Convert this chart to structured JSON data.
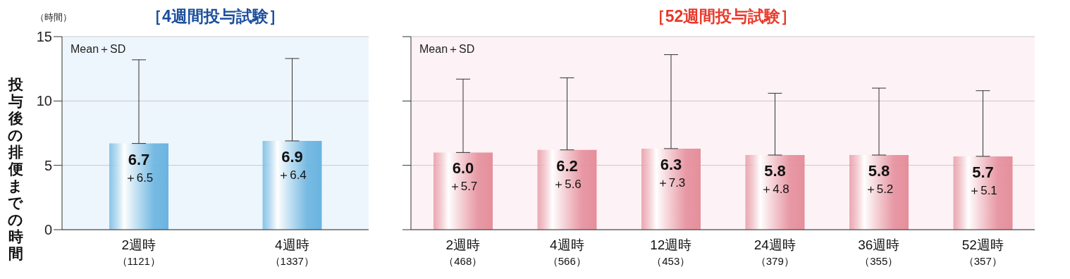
{
  "chart_data": [
    {
      "type": "bar",
      "title": "［4週間投与試験］",
      "ylabel": "投与後の排便までの時間",
      "annotations": [
        "（時間）",
        "Mean＋SD"
      ],
      "categories": [
        "2週時（1121）",
        "4週時（1337）"
      ],
      "series": [
        {
          "color": "#6ab4e0",
          "values": [
            6.7,
            6.9
          ],
          "errors": [
            [
              6.7,
              13.2
            ],
            [
              6.9,
              13.3
            ]
          ],
          "value_labels": [
            "6.7\n＋6.5",
            "6.9\n＋6.4"
          ]
        }
      ],
      "ylim": [
        0,
        15
      ],
      "yticks": [
        0,
        5,
        10,
        15
      ],
      "grid": "y",
      "legend": false
    },
    {
      "type": "bar",
      "title": "［52週間投与試験］",
      "annotations": [
        "Mean＋SD"
      ],
      "categories": [
        "2週時（468）",
        "4週時（566）",
        "12週時（453）",
        "24週時（379）",
        "36週時（355）",
        "52週時（357）"
      ],
      "series": [
        {
          "color": "#e58f9c",
          "values": [
            6.0,
            6.2,
            6.3,
            5.8,
            5.8,
            5.7
          ],
          "errors": [
            [
              6.0,
              11.7
            ],
            [
              6.2,
              11.8
            ],
            [
              6.3,
              13.6
            ],
            [
              5.8,
              10.6
            ],
            [
              5.8,
              11.0
            ],
            [
              5.7,
              10.8
            ]
          ],
          "value_labels": [
            "6.0\n＋5.7",
            "6.2\n＋5.6",
            "6.3\n＋7.3",
            "5.8\n＋4.8",
            "5.8\n＋5.2",
            "5.7\n＋5.1"
          ]
        }
      ],
      "ylim": [
        0,
        15
      ],
      "yticks": [
        0,
        5,
        10,
        15
      ],
      "grid": "y",
      "legend": false,
      "tick_labels": "x"
    }
  ]
}
